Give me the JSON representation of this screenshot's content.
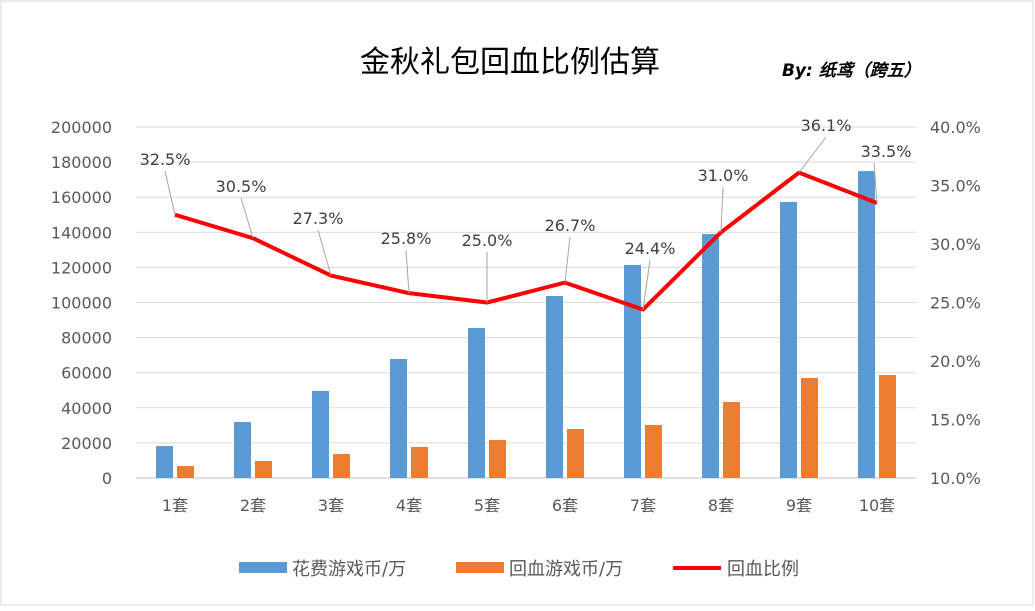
{
  "chart_data": {
    "type": "bar+line",
    "title": "金秋礼包回血比例估算",
    "byline": "By: 纸鸢（跨五）",
    "categories": [
      "1套",
      "2套",
      "3套",
      "4套",
      "5套",
      "6套",
      "7套",
      "8套",
      "9套",
      "10套"
    ],
    "series": [
      {
        "name": "花费游戏币/万",
        "type": "bar",
        "axis": "left",
        "color": "#5B9BD5",
        "values": [
          18200,
          31900,
          49600,
          67800,
          85500,
          103700,
          121400,
          139000,
          157300,
          174900
        ]
      },
      {
        "name": "回血游戏币/万",
        "type": "bar",
        "axis": "left",
        "color": "#ED7D31",
        "values": [
          6800,
          9700,
          13700,
          17700,
          21700,
          27900,
          30200,
          43300,
          57000,
          58700
        ]
      },
      {
        "name": "回血比例",
        "type": "line",
        "axis": "right",
        "color": "#FF0000",
        "values": [
          32.5,
          30.5,
          27.3,
          25.8,
          25.0,
          26.7,
          24.4,
          31.0,
          36.1,
          33.5
        ],
        "labels": [
          "32.5%",
          "30.5%",
          "27.3%",
          "25.8%",
          "25.0%",
          "26.7%",
          "24.4%",
          "31.0%",
          "36.1%",
          "33.5%"
        ]
      }
    ],
    "left_axis": {
      "ylim": [
        0,
        200000
      ],
      "ticks": [
        "0",
        "20000",
        "40000",
        "60000",
        "80000",
        "100000",
        "120000",
        "140000",
        "160000",
        "180000",
        "200000"
      ]
    },
    "right_axis": {
      "ylim": [
        10,
        40
      ],
      "ticks": [
        "10.0%",
        "15.0%",
        "20.0%",
        "25.0%",
        "30.0%",
        "35.0%",
        "40.0%"
      ]
    },
    "grid": true,
    "legend": "bottom"
  }
}
